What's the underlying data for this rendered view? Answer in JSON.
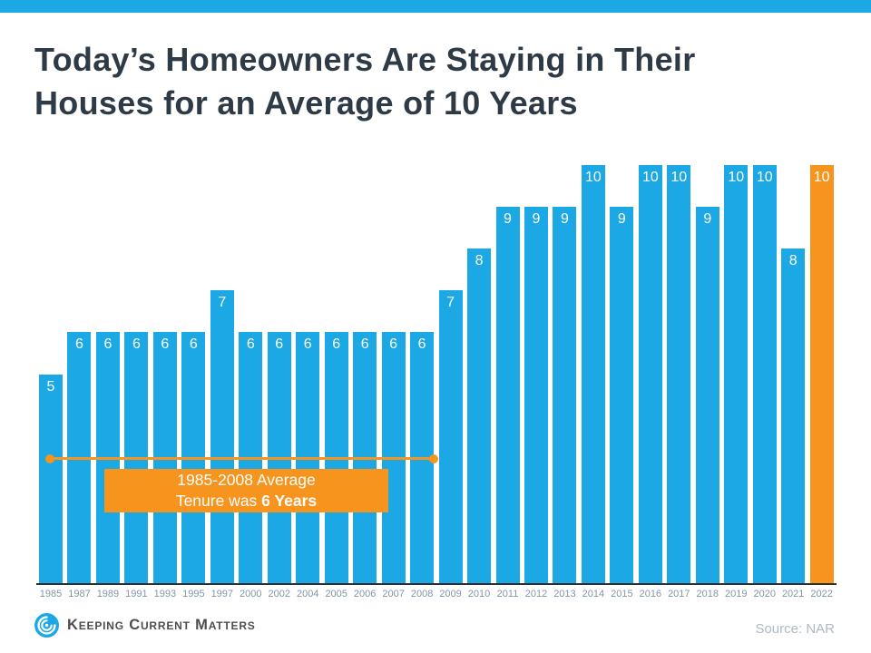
{
  "header": {
    "title": "Today’s Homeowners Are Staying in Their\nHouses for an Average of 10 Years"
  },
  "chart_data": {
    "type": "bar",
    "title": "Today’s Homeowners Are Staying in Their Houses for an Average of 10 Years",
    "categories": [
      "1985",
      "1987",
      "1989",
      "1991",
      "1993",
      "1995",
      "1997",
      "2000",
      "2002",
      "2004",
      "2005",
      "2006",
      "2007",
      "2008",
      "2009",
      "2010",
      "2011",
      "2012",
      "2013",
      "2014",
      "2015",
      "2016",
      "2017",
      "2018",
      "2019",
      "2020",
      "2021",
      "2022"
    ],
    "values": [
      5,
      6,
      6,
      6,
      6,
      6,
      7,
      6,
      6,
      6,
      6,
      6,
      6,
      6,
      7,
      8,
      9,
      9,
      9,
      10,
      9,
      10,
      10,
      9,
      10,
      10,
      8,
      10
    ],
    "ylim": [
      0,
      10
    ],
    "grid": false,
    "legend": false,
    "value_labels_position": "inside-top",
    "bar_color": "#1BA8E4",
    "highlight_color": "#F7941D",
    "highlight_category": "2022",
    "highlight_index": 27,
    "annotation": {
      "span_years": "1985-2008",
      "line1": "1985-2008 Average",
      "line2_text": "Tenure was ",
      "line2_bold": "6 Years"
    }
  },
  "footer": {
    "brand": "Keeping Current Matters",
    "source": "Source: NAR"
  },
  "colors": {
    "accent_blue": "#1BA8E4",
    "accent_orange": "#F7941D",
    "title_text": "#2E3B47",
    "axis_label": "#8296A6",
    "source_text": "#AEB9C3",
    "brand_text": "#4D4D4F"
  }
}
